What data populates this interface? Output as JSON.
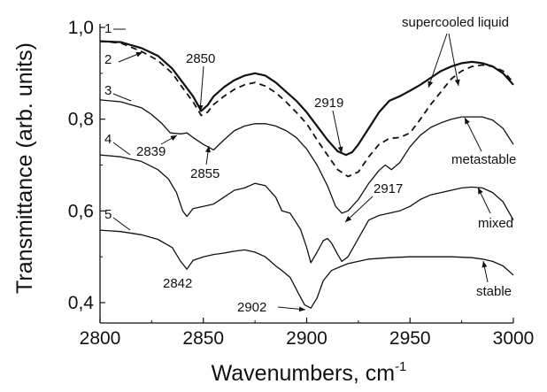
{
  "chart_data": {
    "type": "line",
    "title": "",
    "xlabel": "Wavenumbers, cm",
    "xlabel_superscript": "-1",
    "ylabel": "Transmittance (arb. units)",
    "xlim": [
      2800,
      3000
    ],
    "ylim": [
      0.38,
      1.0
    ],
    "x_ticks": [
      2800,
      2850,
      2900,
      2950,
      3000
    ],
    "x_tick_labels": [
      "2800",
      "2850",
      "2900",
      "2950",
      "3000"
    ],
    "y_ticks": [
      0.4,
      0.6,
      0.8,
      1.0
    ],
    "y_tick_labels": [
      "0,4",
      "0,6",
      "0,8",
      "1,0"
    ],
    "grid": false,
    "series": [
      {
        "name": "1",
        "style": "solid",
        "x": [
          2800,
          2810,
          2820,
          2828,
          2835,
          2840,
          2845,
          2849,
          2852,
          2855,
          2860,
          2865,
          2870,
          2875,
          2880,
          2885,
          2890,
          2895,
          2900,
          2905,
          2910,
          2915,
          2919,
          2922,
          2925,
          2930,
          2935,
          2940,
          2945,
          2950,
          2955,
          2960,
          2965,
          2970,
          2975,
          2980,
          2985,
          2990,
          2995,
          3000
        ],
        "y": [
          0.97,
          0.968,
          0.955,
          0.938,
          0.91,
          0.88,
          0.85,
          0.818,
          0.83,
          0.85,
          0.87,
          0.885,
          0.895,
          0.9,
          0.895,
          0.88,
          0.86,
          0.84,
          0.815,
          0.785,
          0.755,
          0.73,
          0.722,
          0.728,
          0.745,
          0.78,
          0.815,
          0.84,
          0.85,
          0.862,
          0.875,
          0.89,
          0.905,
          0.915,
          0.922,
          0.925,
          0.922,
          0.915,
          0.9,
          0.875
        ]
      },
      {
        "name": "2",
        "style": "dashed",
        "x": [
          2800,
          2810,
          2820,
          2828,
          2835,
          2840,
          2845,
          2849,
          2852,
          2855,
          2860,
          2865,
          2870,
          2875,
          2880,
          2885,
          2890,
          2895,
          2900,
          2905,
          2910,
          2915,
          2920,
          2925,
          2930,
          2935,
          2940,
          2945,
          2950,
          2955,
          2960,
          2965,
          2970,
          2975,
          2980,
          2985,
          2990,
          2995,
          3000
        ],
        "y": [
          0.97,
          0.966,
          0.948,
          0.928,
          0.9,
          0.868,
          0.838,
          0.808,
          0.815,
          0.832,
          0.85,
          0.865,
          0.875,
          0.88,
          0.872,
          0.858,
          0.838,
          0.815,
          0.79,
          0.755,
          0.722,
          0.69,
          0.675,
          0.685,
          0.718,
          0.745,
          0.758,
          0.76,
          0.77,
          0.8,
          0.832,
          0.86,
          0.888,
          0.905,
          0.915,
          0.918,
          0.915,
          0.905,
          0.88
        ]
      },
      {
        "name": "3",
        "style": "solid",
        "x": [
          2800,
          2810,
          2820,
          2825,
          2830,
          2834,
          2839,
          2842,
          2845,
          2850,
          2855,
          2860,
          2865,
          2870,
          2875,
          2880,
          2885,
          2890,
          2895,
          2900,
          2905,
          2910,
          2914,
          2917,
          2920,
          2925,
          2930,
          2935,
          2938,
          2941,
          2945,
          2950,
          2955,
          2960,
          2965,
          2970,
          2975,
          2980,
          2985,
          2990,
          2995,
          3000
        ],
        "y": [
          0.842,
          0.838,
          0.825,
          0.81,
          0.79,
          0.77,
          0.768,
          0.77,
          0.76,
          0.745,
          0.733,
          0.755,
          0.775,
          0.785,
          0.79,
          0.79,
          0.785,
          0.775,
          0.76,
          0.735,
          0.7,
          0.655,
          0.61,
          0.595,
          0.6,
          0.625,
          0.66,
          0.688,
          0.7,
          0.69,
          0.705,
          0.74,
          0.765,
          0.782,
          0.792,
          0.8,
          0.805,
          0.805,
          0.805,
          0.798,
          0.78,
          0.745
        ]
      },
      {
        "name": "4",
        "style": "solid",
        "x": [
          2800,
          2810,
          2820,
          2828,
          2833,
          2837,
          2840,
          2842,
          2845,
          2850,
          2855,
          2860,
          2865,
          2870,
          2875,
          2880,
          2885,
          2888,
          2892,
          2897,
          2900,
          2902,
          2905,
          2908,
          2910,
          2912,
          2915,
          2917,
          2920,
          2925,
          2930,
          2935,
          2940,
          2945,
          2950,
          2955,
          2960,
          2965,
          2970,
          2975,
          2980,
          2985,
          2990,
          2995,
          3000
        ],
        "y": [
          0.722,
          0.718,
          0.708,
          0.69,
          0.67,
          0.64,
          0.6,
          0.588,
          0.605,
          0.61,
          0.615,
          0.63,
          0.645,
          0.65,
          0.66,
          0.655,
          0.63,
          0.6,
          0.595,
          0.56,
          0.52,
          0.487,
          0.51,
          0.535,
          0.54,
          0.53,
          0.505,
          0.49,
          0.5,
          0.54,
          0.58,
          0.59,
          0.595,
          0.6,
          0.61,
          0.625,
          0.635,
          0.64,
          0.645,
          0.65,
          0.652,
          0.65,
          0.64,
          0.62,
          0.58
        ]
      },
      {
        "name": "5",
        "style": "solid",
        "x": [
          2800,
          2810,
          2820,
          2828,
          2835,
          2839,
          2842,
          2845,
          2850,
          2855,
          2860,
          2865,
          2870,
          2875,
          2880,
          2885,
          2888,
          2892,
          2896,
          2899,
          2902,
          2905,
          2908,
          2912,
          2916,
          2920,
          2925,
          2930,
          2940,
          2950,
          2960,
          2970,
          2980,
          2985,
          2990,
          2995,
          3000
        ],
        "y": [
          0.558,
          0.555,
          0.548,
          0.538,
          0.52,
          0.49,
          0.473,
          0.492,
          0.5,
          0.505,
          0.508,
          0.512,
          0.515,
          0.51,
          0.5,
          0.48,
          0.47,
          0.455,
          0.42,
          0.395,
          0.388,
          0.41,
          0.448,
          0.47,
          0.478,
          0.485,
          0.49,
          0.495,
          0.498,
          0.5,
          0.5,
          0.5,
          0.498,
          0.495,
          0.49,
          0.48,
          0.46
        ]
      }
    ],
    "annotations": [
      {
        "text": "2850",
        "x": 2850,
        "y": 0.835
      },
      {
        "text": "2919",
        "x": 2919,
        "y": 0.74
      },
      {
        "text": "2839",
        "x": 2839,
        "y": 0.768
      },
      {
        "text": "2855",
        "x": 2855,
        "y": 0.733
      },
      {
        "text": "2917",
        "x": 2917,
        "y": 0.595
      },
      {
        "text": "2842",
        "x": 2842,
        "y": 0.473
      },
      {
        "text": "2902",
        "x": 2902,
        "y": 0.388
      },
      {
        "text": "supercooled liquid",
        "x": 2975,
        "y": 0.922
      },
      {
        "text": "metastable",
        "x": 2980,
        "y": 0.805
      },
      {
        "text": "mixed",
        "x": 2982,
        "y": 0.652
      },
      {
        "text": "stable",
        "x": 2980,
        "y": 0.498
      }
    ],
    "colors": {
      "line": "#111111",
      "background": "#ffffff"
    }
  }
}
